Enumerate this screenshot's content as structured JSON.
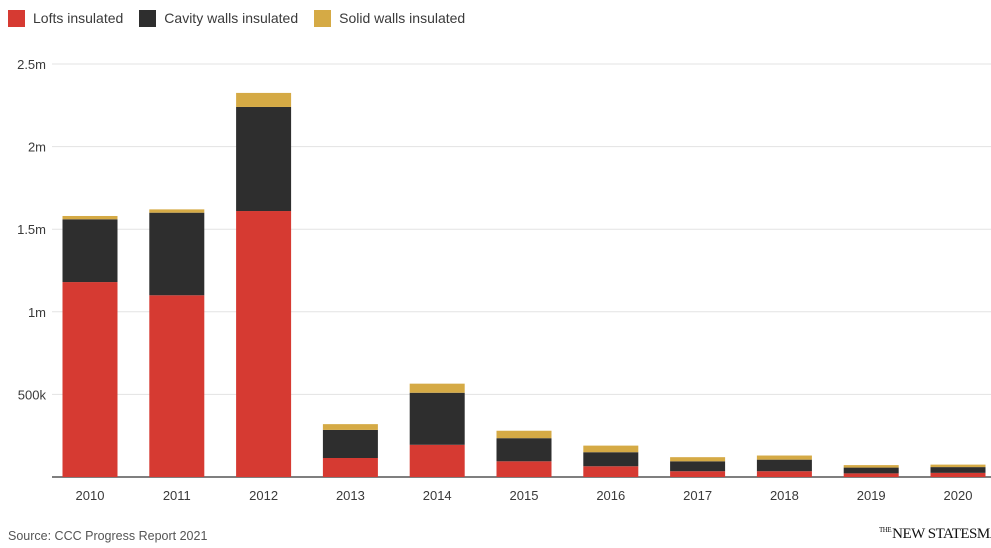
{
  "legend": [
    {
      "label": "Lofts insulated",
      "color": "#d63a32"
    },
    {
      "label": "Cavity walls insulated",
      "color": "#2e2e2e"
    },
    {
      "label": "Solid walls insulated",
      "color": "#d5aa45"
    }
  ],
  "source": "Source: CCC Progress Report 2021",
  "brand": {
    "prefix": "THE",
    "name": "NEW STATESMAN"
  },
  "chart_data": {
    "type": "bar",
    "stacked": true,
    "categories": [
      "2010",
      "2011",
      "2012",
      "2013",
      "2014",
      "2015",
      "2016",
      "2017",
      "2018",
      "2019",
      "2020"
    ],
    "series": [
      {
        "name": "Lofts insulated",
        "color": "#d63a32",
        "values": [
          1180000,
          1100000,
          1610000,
          115000,
          195000,
          95000,
          65000,
          35000,
          35000,
          22000,
          25000
        ]
      },
      {
        "name": "Cavity walls insulated",
        "color": "#2e2e2e",
        "values": [
          380000,
          500000,
          630000,
          170000,
          315000,
          140000,
          85000,
          60000,
          70000,
          35000,
          35000
        ]
      },
      {
        "name": "Solid walls insulated",
        "color": "#d5aa45",
        "values": [
          20000,
          20000,
          85000,
          35000,
          55000,
          45000,
          40000,
          25000,
          25000,
          15000,
          15000
        ]
      }
    ],
    "ylim": [
      0,
      2500000
    ],
    "yticks": [
      {
        "value": 500000,
        "label": "500k"
      },
      {
        "value": 1000000,
        "label": "1m"
      },
      {
        "value": 1500000,
        "label": "1.5m"
      },
      {
        "value": 2000000,
        "label": "2m"
      },
      {
        "value": 2500000,
        "label": "2.5m"
      }
    ],
    "grid": true,
    "legend_position": "top-left"
  }
}
